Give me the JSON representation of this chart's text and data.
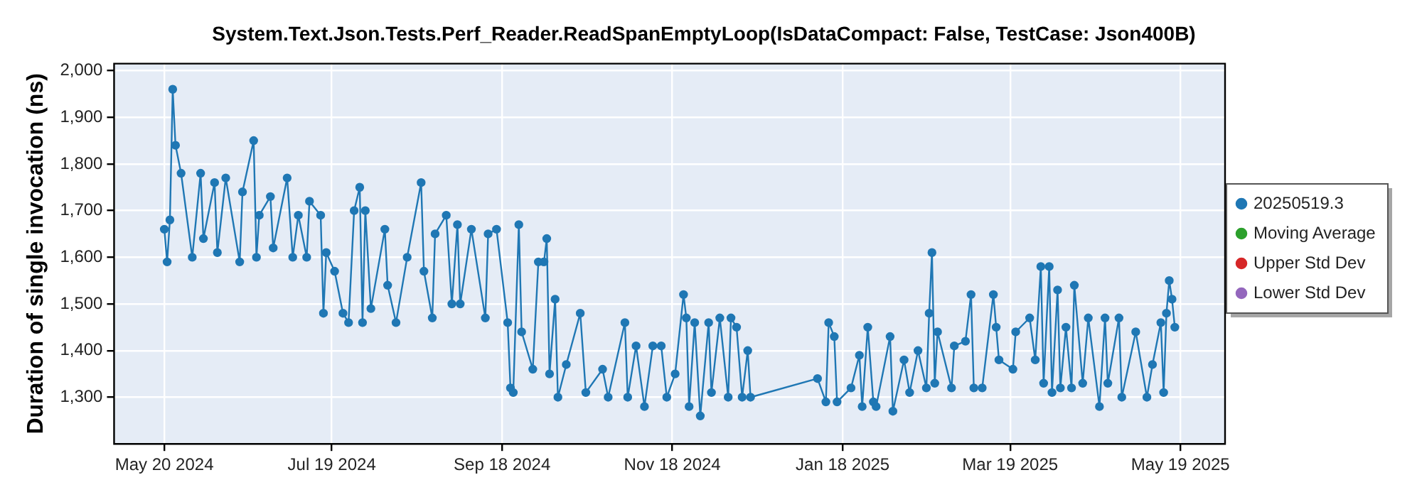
{
  "chart_data": {
    "type": "line",
    "title": "System.Text.Json.Tests.Perf_Reader.ReadSpanEmptyLoop(IsDataCompact: False, TestCase: Json400B)",
    "ylabel": "Duration of single invocation (ns)",
    "x": [
      "2024-05-20",
      "2024-05-21",
      "2024-05-22",
      "2024-05-23",
      "2024-05-24",
      "2024-05-26",
      "2024-05-30",
      "2024-06-02",
      "2024-06-03",
      "2024-06-07",
      "2024-06-08",
      "2024-06-11",
      "2024-06-16",
      "2024-06-17",
      "2024-06-21",
      "2024-06-22",
      "2024-06-23",
      "2024-06-27",
      "2024-06-28",
      "2024-07-03",
      "2024-07-05",
      "2024-07-07",
      "2024-07-10",
      "2024-07-11",
      "2024-07-15",
      "2024-07-16",
      "2024-07-17",
      "2024-07-20",
      "2024-07-23",
      "2024-07-25",
      "2024-07-27",
      "2024-07-29",
      "2024-07-30",
      "2024-07-31",
      "2024-08-02",
      "2024-08-07",
      "2024-08-08",
      "2024-08-11",
      "2024-08-15",
      "2024-08-20",
      "2024-08-21",
      "2024-08-24",
      "2024-08-25",
      "2024-08-29",
      "2024-08-31",
      "2024-09-02",
      "2024-09-03",
      "2024-09-07",
      "2024-09-12",
      "2024-09-13",
      "2024-09-16",
      "2024-09-20",
      "2024-09-21",
      "2024-09-22",
      "2024-09-24",
      "2024-09-25",
      "2024-09-29",
      "2024-10-01",
      "2024-10-03",
      "2024-10-04",
      "2024-10-05",
      "2024-10-07",
      "2024-10-08",
      "2024-10-11",
      "2024-10-16",
      "2024-10-18",
      "2024-10-24",
      "2024-10-26",
      "2024-11-01",
      "2024-11-02",
      "2024-11-05",
      "2024-11-08",
      "2024-11-11",
      "2024-11-14",
      "2024-11-16",
      "2024-11-19",
      "2024-11-22",
      "2024-11-23",
      "2024-11-24",
      "2024-11-26",
      "2024-11-28",
      "2024-12-01",
      "2024-12-02",
      "2024-12-05",
      "2024-12-08",
      "2024-12-09",
      "2024-12-11",
      "2024-12-13",
      "2024-12-15",
      "2024-12-16",
      "2025-01-09",
      "2025-01-12",
      "2025-01-13",
      "2025-01-15",
      "2025-01-16",
      "2025-01-21",
      "2025-01-24",
      "2025-01-25",
      "2025-01-27",
      "2025-01-29",
      "2025-01-30",
      "2025-02-04",
      "2025-02-05",
      "2025-02-09",
      "2025-02-11",
      "2025-02-14",
      "2025-02-17",
      "2025-02-18",
      "2025-02-19",
      "2025-02-20",
      "2025-02-21",
      "2025-02-26",
      "2025-02-27",
      "2025-03-03",
      "2025-03-05",
      "2025-03-06",
      "2025-03-09",
      "2025-03-13",
      "2025-03-14",
      "2025-03-15",
      "2025-03-20",
      "2025-03-21",
      "2025-03-26",
      "2025-03-28",
      "2025-03-30",
      "2025-03-31",
      "2025-04-02",
      "2025-04-03",
      "2025-04-05",
      "2025-04-06",
      "2025-04-08",
      "2025-04-10",
      "2025-04-11",
      "2025-04-14",
      "2025-04-16",
      "2025-04-20",
      "2025-04-22",
      "2025-04-23",
      "2025-04-27",
      "2025-04-28",
      "2025-05-03",
      "2025-05-07",
      "2025-05-09",
      "2025-05-12",
      "2025-05-13",
      "2025-05-14",
      "2025-05-15",
      "2025-05-16",
      "2025-05-17"
    ],
    "series": [
      {
        "name": "20250519.3",
        "color": "#1f77b4",
        "values": [
          1660,
          1590,
          1680,
          1960,
          1840,
          1780,
          1600,
          1780,
          1640,
          1760,
          1610,
          1770,
          1590,
          1740,
          1850,
          1600,
          1690,
          1730,
          1620,
          1770,
          1600,
          1690,
          1600,
          1720,
          1690,
          1480,
          1610,
          1570,
          1480,
          1460,
          1700,
          1750,
          1460,
          1700,
          1490,
          1660,
          1540,
          1460,
          1600,
          1760,
          1570,
          1470,
          1650,
          1690,
          1500,
          1670,
          1500,
          1660,
          1470,
          1650,
          1660,
          1460,
          1320,
          1310,
          1670,
          1440,
          1360,
          1590,
          1590,
          1640,
          1350,
          1510,
          1300,
          1370,
          1480,
          1310,
          1360,
          1300,
          1460,
          1300,
          1410,
          1280,
          1410,
          1410,
          1300,
          1350,
          1520,
          1470,
          1280,
          1460,
          1260,
          1460,
          1310,
          1470,
          1300,
          1470,
          1450,
          1300,
          1400,
          1300,
          1340,
          1290,
          1460,
          1430,
          1290,
          1320,
          1390,
          1280,
          1450,
          1290,
          1280,
          1430,
          1270,
          1380,
          1310,
          1400,
          1320,
          1480,
          1610,
          1330,
          1440,
          1320,
          1410,
          1420,
          1520,
          1320,
          1320,
          1520,
          1450,
          1380,
          1360,
          1440,
          1470,
          1380,
          1580,
          1330,
          1580,
          1310,
          1530,
          1320,
          1450,
          1320,
          1540,
          1330,
          1470,
          1280,
          1470,
          1330,
          1470,
          1300,
          1440,
          1300,
          1370,
          1460,
          1310,
          1480,
          1550,
          1510,
          1450
        ]
      },
      {
        "name": "Moving Average",
        "color": "#2ca02c",
        "values": [
          null,
          null,
          null,
          null,
          null,
          null,
          null,
          null,
          null,
          null,
          null,
          null,
          null,
          null,
          null,
          null,
          null,
          null,
          null,
          null,
          null,
          null,
          null,
          null,
          null,
          null,
          null,
          null,
          null,
          null,
          null,
          null,
          null,
          null,
          null,
          null,
          null,
          null,
          null,
          null,
          null,
          null,
          null,
          null,
          null,
          null,
          null,
          null,
          null,
          null,
          null,
          null,
          null,
          null,
          null,
          null,
          null,
          null,
          null,
          null,
          null,
          null,
          null,
          null,
          null,
          null,
          null,
          null,
          null,
          null,
          null,
          null,
          null,
          null,
          null,
          null,
          null,
          null,
          null,
          null,
          null,
          null,
          null,
          null,
          null,
          null,
          null,
          null,
          null,
          null,
          null,
          null,
          null,
          null,
          null,
          null,
          null,
          null,
          null,
          null,
          null,
          null,
          null,
          null,
          null,
          null,
          null,
          null,
          null,
          null,
          null,
          null,
          null,
          null,
          null,
          null,
          null,
          null,
          null,
          null,
          null,
          null,
          null,
          null,
          null,
          null,
          null,
          null,
          null,
          null,
          null,
          null,
          null,
          null,
          null,
          null,
          null,
          null,
          null,
          null,
          null,
          null,
          null,
          null,
          null,
          null,
          null,
          null,
          null
        ]
      },
      {
        "name": "Upper Std Dev",
        "color": "#d62728",
        "values": [
          null,
          null,
          null,
          null,
          null,
          null,
          null,
          null,
          null,
          null,
          null,
          null,
          null,
          null,
          null,
          null,
          null,
          null,
          null,
          null,
          null,
          null,
          null,
          null,
          null,
          null,
          null,
          null,
          null,
          null,
          null,
          null,
          null,
          null,
          null,
          null,
          null,
          null,
          null,
          null,
          null,
          null,
          null,
          null,
          null,
          null,
          null,
          null,
          null,
          null,
          null,
          null,
          null,
          null,
          null,
          null,
          null,
          null,
          null,
          null,
          null,
          null,
          null,
          null,
          null,
          null,
          null,
          null,
          null,
          null,
          null,
          null,
          null,
          null,
          null,
          null,
          null,
          null,
          null,
          null,
          null,
          null,
          null,
          null,
          null,
          null,
          null,
          null,
          null,
          null,
          null,
          null,
          null,
          null,
          null,
          null,
          null,
          null,
          null,
          null,
          null,
          null,
          null,
          null,
          null,
          null,
          null,
          null,
          null,
          null,
          null,
          null,
          null,
          null,
          null,
          null,
          null,
          null,
          null,
          null,
          null,
          null,
          null,
          null,
          null,
          null,
          null,
          null,
          null,
          null,
          null,
          null,
          null,
          null,
          null,
          null,
          null,
          null,
          null,
          null,
          null,
          null,
          null,
          null,
          null,
          null,
          null,
          null,
          null
        ]
      },
      {
        "name": "Lower Std Dev",
        "color": "#9467bd",
        "values": [
          null,
          null,
          null,
          null,
          null,
          null,
          null,
          null,
          null,
          null,
          null,
          null,
          null,
          null,
          null,
          null,
          null,
          null,
          null,
          null,
          null,
          null,
          null,
          null,
          null,
          null,
          null,
          null,
          null,
          null,
          null,
          null,
          null,
          null,
          null,
          null,
          null,
          null,
          null,
          null,
          null,
          null,
          null,
          null,
          null,
          null,
          null,
          null,
          null,
          null,
          null,
          null,
          null,
          null,
          null,
          null,
          null,
          null,
          null,
          null,
          null,
          null,
          null,
          null,
          null,
          null,
          null,
          null,
          null,
          null,
          null,
          null,
          null,
          null,
          null,
          null,
          null,
          null,
          null,
          null,
          null,
          null,
          null,
          null,
          null,
          null,
          null,
          null,
          null,
          null,
          null,
          null,
          null,
          null,
          null,
          null,
          null,
          null,
          null,
          null,
          null,
          null,
          null,
          null,
          null,
          null,
          null,
          null,
          null,
          null,
          null,
          null,
          null,
          null,
          null,
          null,
          null,
          null,
          null,
          null,
          null,
          null,
          null,
          null,
          null,
          null,
          null,
          null,
          null,
          null,
          null,
          null,
          null,
          null,
          null,
          null,
          null,
          null,
          null,
          null,
          null,
          null,
          null,
          null,
          null,
          null,
          null,
          null,
          null
        ]
      }
    ],
    "xlim": [
      "2024-05-02",
      "2025-06-04"
    ],
    "xticks": [
      {
        "value": "2024-05-20",
        "label": "May 20 2024"
      },
      {
        "value": "2024-07-19",
        "label": "Jul 19 2024"
      },
      {
        "value": "2024-09-18",
        "label": "Sep 18 2024"
      },
      {
        "value": "2024-11-18",
        "label": "Nov 18 2024"
      },
      {
        "value": "2025-01-18",
        "label": "Jan 18 2025"
      },
      {
        "value": "2025-03-19",
        "label": "Mar 19 2025"
      },
      {
        "value": "2025-05-19",
        "label": "May 19 2025"
      }
    ],
    "ylim": [
      1200,
      2015
    ],
    "yticks": [
      {
        "value": 1300,
        "label": "1,300"
      },
      {
        "value": 1400,
        "label": "1,400"
      },
      {
        "value": 1500,
        "label": "1,500"
      },
      {
        "value": 1600,
        "label": "1,600"
      },
      {
        "value": 1700,
        "label": "1,700"
      },
      {
        "value": 1800,
        "label": "1,800"
      },
      {
        "value": 1900,
        "label": "1,900"
      },
      {
        "value": 2000,
        "label": "2,000"
      }
    ],
    "grid": true,
    "legend": "right",
    "marker": "circle",
    "line_style": "solid"
  }
}
